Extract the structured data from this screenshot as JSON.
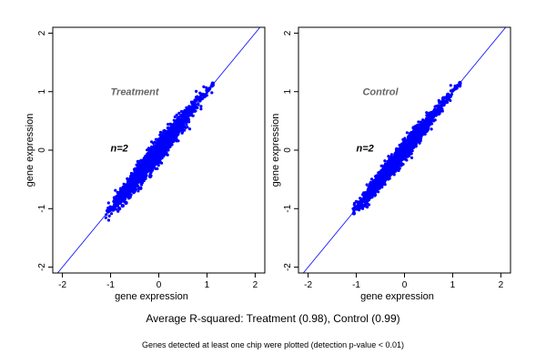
{
  "caption": "Average R-squared: Treatment (0.98), Control (0.99)",
  "footnote": "Genes detected at least one chip were plotted (detection p-value < 0.01)",
  "colors": {
    "points": "#0000ff",
    "line": "#0000ff",
    "frame": "#000000",
    "panel_title": "#666666"
  },
  "chart_data": [
    {
      "type": "scatter",
      "title": "Treatment",
      "annotation": "n=2",
      "xlabel": "gene expression",
      "ylabel": "gene expression",
      "xlim": [
        -2.2,
        2.2
      ],
      "ylim": [
        -2.1,
        2.1
      ],
      "xticks": [
        -2,
        -1,
        0,
        1,
        2
      ],
      "yticks": [
        -2,
        -1,
        0,
        1,
        2
      ],
      "reference_line": "y = x",
      "grid": false,
      "points": [
        [
          -1.05,
          -1.05
        ],
        [
          -1.0,
          -0.98
        ],
        [
          -0.95,
          -1.02
        ],
        [
          -0.9,
          -0.95
        ],
        [
          -0.85,
          -0.9
        ],
        [
          -0.82,
          -1.0
        ],
        [
          -0.78,
          -0.85
        ],
        [
          -0.75,
          -0.95
        ],
        [
          -0.7,
          -0.75
        ],
        [
          -0.68,
          -0.9
        ],
        [
          -0.65,
          -0.7
        ],
        [
          -0.6,
          -0.8
        ],
        [
          -0.58,
          -0.55
        ],
        [
          -0.55,
          -0.7
        ],
        [
          -0.5,
          -0.6
        ],
        [
          -0.48,
          -0.35
        ],
        [
          -0.45,
          -0.55
        ],
        [
          -0.42,
          -0.2
        ],
        [
          -0.4,
          -0.45
        ],
        [
          -0.38,
          -0.65
        ],
        [
          -0.35,
          -0.3
        ],
        [
          -0.3,
          -0.4
        ],
        [
          -0.28,
          -0.15
        ],
        [
          -0.25,
          -0.35
        ],
        [
          -0.2,
          -0.2
        ],
        [
          -0.18,
          -0.45
        ],
        [
          -0.15,
          -0.05
        ],
        [
          -0.1,
          -0.2
        ],
        [
          -0.08,
          0.05
        ],
        [
          -0.05,
          -0.1
        ],
        [
          0.0,
          0.0
        ],
        [
          0.02,
          -0.2
        ],
        [
          0.05,
          0.15
        ],
        [
          0.1,
          0.05
        ],
        [
          0.12,
          0.25
        ],
        [
          0.15,
          0.1
        ],
        [
          0.2,
          0.3
        ],
        [
          0.22,
          0.1
        ],
        [
          0.25,
          0.35
        ],
        [
          0.3,
          0.25
        ],
        [
          0.35,
          0.45
        ],
        [
          0.38,
          0.3
        ],
        [
          0.4,
          0.5
        ],
        [
          0.45,
          0.45
        ],
        [
          0.5,
          0.6
        ],
        [
          0.55,
          0.5
        ],
        [
          0.6,
          0.7
        ],
        [
          0.65,
          0.65
        ],
        [
          0.7,
          0.8
        ],
        [
          0.75,
          0.75
        ],
        [
          0.8,
          0.9
        ],
        [
          0.85,
          0.85
        ],
        [
          0.9,
          0.95
        ],
        [
          0.95,
          0.92
        ],
        [
          1.0,
          1.02
        ],
        [
          1.05,
          1.05
        ],
        [
          1.1,
          1.1
        ],
        [
          1.12,
          1.14
        ]
      ]
    },
    {
      "type": "scatter",
      "title": "Control",
      "annotation": "n=2",
      "xlabel": "gene expression",
      "ylabel": "gene expression",
      "xlim": [
        -2.2,
        2.2
      ],
      "ylim": [
        -2.1,
        2.1
      ],
      "xticks": [
        -2,
        -1,
        0,
        1,
        2
      ],
      "yticks": [
        -2,
        -1,
        0,
        1,
        2
      ],
      "reference_line": "y = x",
      "grid": false,
      "points": [
        [
          -1.05,
          -1.08
        ],
        [
          -1.0,
          -1.0
        ],
        [
          -0.95,
          -1.0
        ],
        [
          -0.9,
          -0.92
        ],
        [
          -0.85,
          -0.85
        ],
        [
          -0.82,
          -0.95
        ],
        [
          -0.78,
          -0.8
        ],
        [
          -0.75,
          -0.85
        ],
        [
          -0.7,
          -0.68
        ],
        [
          -0.68,
          -0.78
        ],
        [
          -0.65,
          -0.62
        ],
        [
          -0.6,
          -0.7
        ],
        [
          -0.58,
          -0.5
        ],
        [
          -0.55,
          -0.6
        ],
        [
          -0.5,
          -0.5
        ],
        [
          -0.48,
          -0.38
        ],
        [
          -0.45,
          -0.48
        ],
        [
          -0.42,
          -0.3
        ],
        [
          -0.4,
          -0.42
        ],
        [
          -0.35,
          -0.32
        ],
        [
          -0.3,
          -0.35
        ],
        [
          -0.28,
          -0.2
        ],
        [
          -0.25,
          -0.28
        ],
        [
          -0.2,
          -0.18
        ],
        [
          -0.18,
          -0.3
        ],
        [
          -0.15,
          -0.1
        ],
        [
          -0.1,
          -0.12
        ],
        [
          -0.05,
          -0.05
        ],
        [
          0.0,
          0.0
        ],
        [
          0.02,
          -0.08
        ],
        [
          0.05,
          0.1
        ],
        [
          0.1,
          0.05
        ],
        [
          0.12,
          0.18
        ],
        [
          0.15,
          0.12
        ],
        [
          0.2,
          0.25
        ],
        [
          0.25,
          0.22
        ],
        [
          0.3,
          0.35
        ],
        [
          0.35,
          0.3
        ],
        [
          0.4,
          0.45
        ],
        [
          0.45,
          0.42
        ],
        [
          0.5,
          0.55
        ],
        [
          0.55,
          0.52
        ],
        [
          0.6,
          0.65
        ],
        [
          0.65,
          0.6
        ],
        [
          0.7,
          0.75
        ],
        [
          0.75,
          0.72
        ],
        [
          0.8,
          0.85
        ],
        [
          0.85,
          0.82
        ],
        [
          0.9,
          0.95
        ],
        [
          0.95,
          0.92
        ],
        [
          1.0,
          1.02
        ],
        [
          1.05,
          1.05
        ],
        [
          1.1,
          1.1
        ],
        [
          1.15,
          1.15
        ]
      ]
    }
  ]
}
